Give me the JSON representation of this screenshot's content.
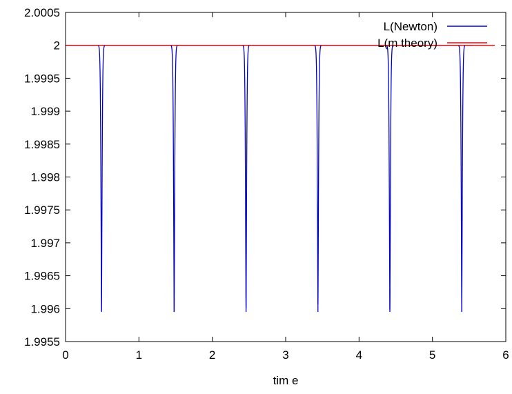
{
  "chart_data": {
    "type": "line",
    "title": "",
    "xlabel": "tim e",
    "ylabel": "",
    "xlim": [
      0,
      6
    ],
    "ylim": [
      1.9955,
      2.0005
    ],
    "x_ticks": [
      "0",
      "1",
      "2",
      "3",
      "4",
      "5",
      "6"
    ],
    "y_ticks": [
      "1.9955",
      "1.996",
      "1.9965",
      "1.997",
      "1.9975",
      "1.998",
      "1.9985",
      "1.999",
      "1.9995",
      "2",
      "2.0005"
    ],
    "grid": false,
    "legend_position": "top-right",
    "series": [
      {
        "name": "L(Newton)",
        "color": "#0000cc",
        "baseline": 2.0,
        "dips": [
          {
            "x": 0.49,
            "y": 1.99595
          },
          {
            "x": 1.48,
            "y": 1.99595
          },
          {
            "x": 2.46,
            "y": 1.99595
          },
          {
            "x": 3.44,
            "y": 1.99595
          },
          {
            "x": 4.42,
            "y": 1.99595
          },
          {
            "x": 5.4,
            "y": 1.99595
          }
        ],
        "x_range": [
          0.0,
          5.55
        ]
      },
      {
        "name": "L(m theory)",
        "color": "#ff0000",
        "constant": 2.0,
        "x_range": [
          0.0,
          5.85
        ]
      }
    ]
  }
}
